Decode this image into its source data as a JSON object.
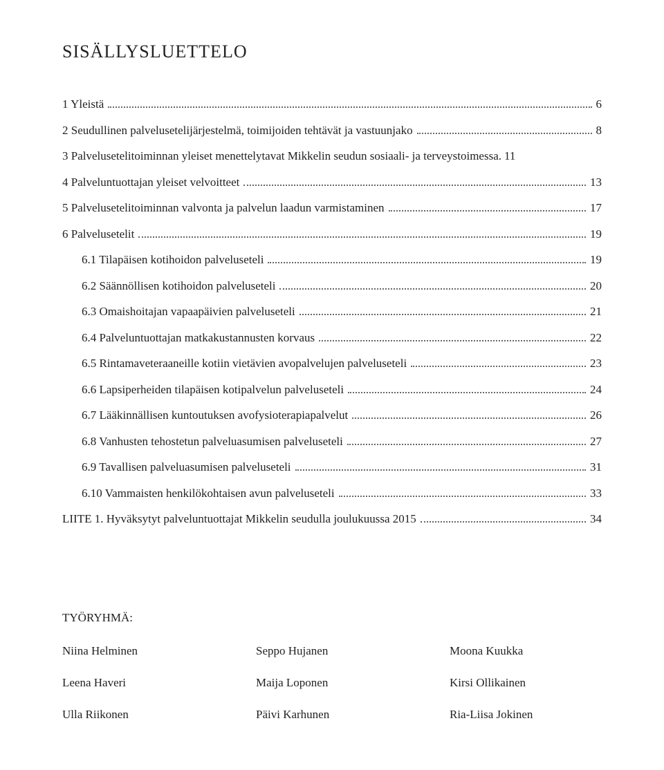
{
  "title": "SISÄLLYSLUETTELO",
  "toc": [
    {
      "label": "1 Yleistä",
      "page": "6",
      "indent": 0
    },
    {
      "label": "2 Seudullinen palvelusetelijärjestelmä, toimijoiden tehtävät ja vastuunjako",
      "page": "8",
      "indent": 0
    },
    {
      "label": "3 Palvelusetelitoiminnan yleiset menettelytavat Mikkelin seudun sosiaali- ja terveystoimessa.",
      "page": "11",
      "indent": 0,
      "nodots": true
    },
    {
      "label": "4 Palveluntuottajan yleiset velvoitteet",
      "page": "13",
      "indent": 0
    },
    {
      "label": "5 Palvelusetelitoiminnan valvonta ja palvelun laadun varmistaminen",
      "page": "17",
      "indent": 0
    },
    {
      "label": "6 Palvelusetelit",
      "page": "19",
      "indent": 0
    },
    {
      "label": "6.1 Tilapäisen kotihoidon palveluseteli",
      "page": "19",
      "indent": 1
    },
    {
      "label": "6.2 Säännöllisen kotihoidon palveluseteli",
      "page": "20",
      "indent": 1
    },
    {
      "label": "6.3 Omaishoitajan vapaapäivien palveluseteli",
      "page": "21",
      "indent": 1
    },
    {
      "label": "6.4 Palveluntuottajan matkakustannusten korvaus",
      "page": "22",
      "indent": 1
    },
    {
      "label": "6.5 Rintamaveteraaneille kotiin vietävien avopalvelujen palveluseteli",
      "page": "23",
      "indent": 1
    },
    {
      "label": "6.6 Lapsiperheiden tilapäisen kotipalvelun palveluseteli",
      "page": "24",
      "indent": 1
    },
    {
      "label": "6.7 Lääkinnällisen kuntoutuksen avofysioterapiapalvelut",
      "page": "26",
      "indent": 1
    },
    {
      "label": "6.8 Vanhusten tehostetun palveluasumisen palveluseteli",
      "page": "27",
      "indent": 1
    },
    {
      "label": "6.9 Tavallisen palveluasumisen palveluseteli",
      "page": "31",
      "indent": 1
    },
    {
      "label": "6.10 Vammaisten henkilökohtaisen avun palveluseteli",
      "page": "33",
      "indent": 1
    },
    {
      "label": "LIITE 1. Hyväksytyt palveluntuottajat Mikkelin seudulla joulukuussa 2015",
      "page": "34",
      "indent": 0
    }
  ],
  "workgroup": {
    "heading": "TYÖRYHMÄ:",
    "rows": [
      [
        "Niina Helminen",
        "Seppo Hujanen",
        "Moona Kuukka"
      ],
      [
        "Leena Haveri",
        "Maija Loponen",
        "Kirsi Ollikainen"
      ],
      [
        "Ulla Riikonen",
        "Päivi Karhunen",
        "Ria-Liisa Jokinen"
      ]
    ]
  }
}
